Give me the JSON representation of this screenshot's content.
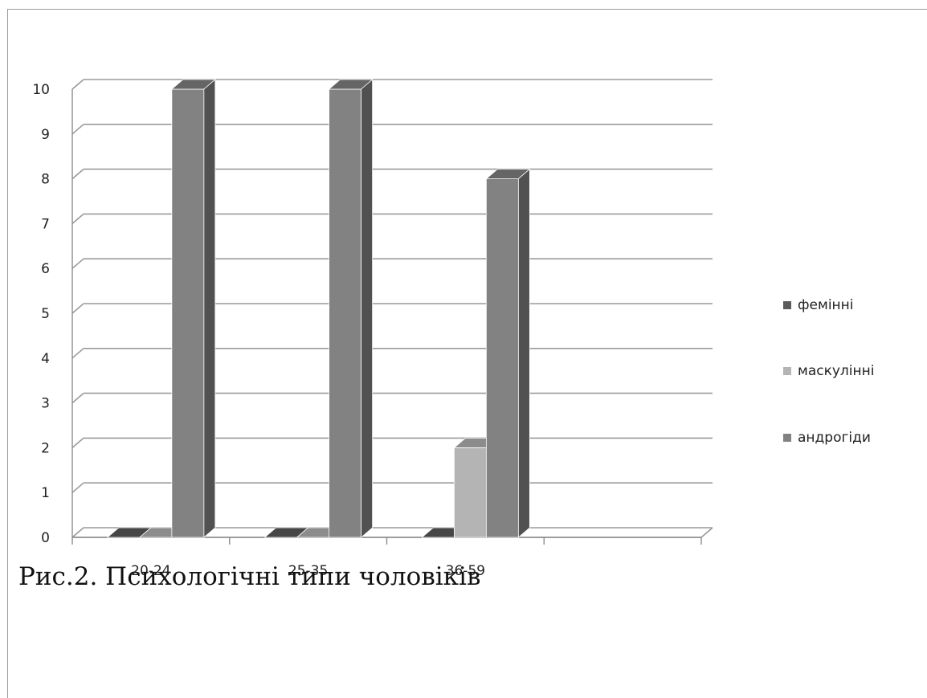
{
  "chart_data": {
    "type": "bar",
    "categories": [
      "20-24",
      "25-35",
      "36-59",
      ""
    ],
    "series": [
      {
        "name": "фемінні",
        "values": [
          0,
          0,
          0,
          0
        ],
        "color": "#5a5a5a"
      },
      {
        "name": "маскулінні",
        "values": [
          0,
          0,
          2,
          0
        ],
        "color": "#b4b4b4"
      },
      {
        "name": "андрогіди",
        "values": [
          10,
          10,
          8,
          0
        ],
        "color": "#828282"
      }
    ],
    "y_ticks": [
      "0",
      "1",
      "2",
      "3",
      "4",
      "5",
      "6",
      "7",
      "8",
      "9",
      "10"
    ],
    "ylim": [
      0,
      10
    ],
    "grid": true,
    "legend_position": "right",
    "style": "3d-bar"
  },
  "caption": "Рис.2. Психологічні типи чоловіків"
}
